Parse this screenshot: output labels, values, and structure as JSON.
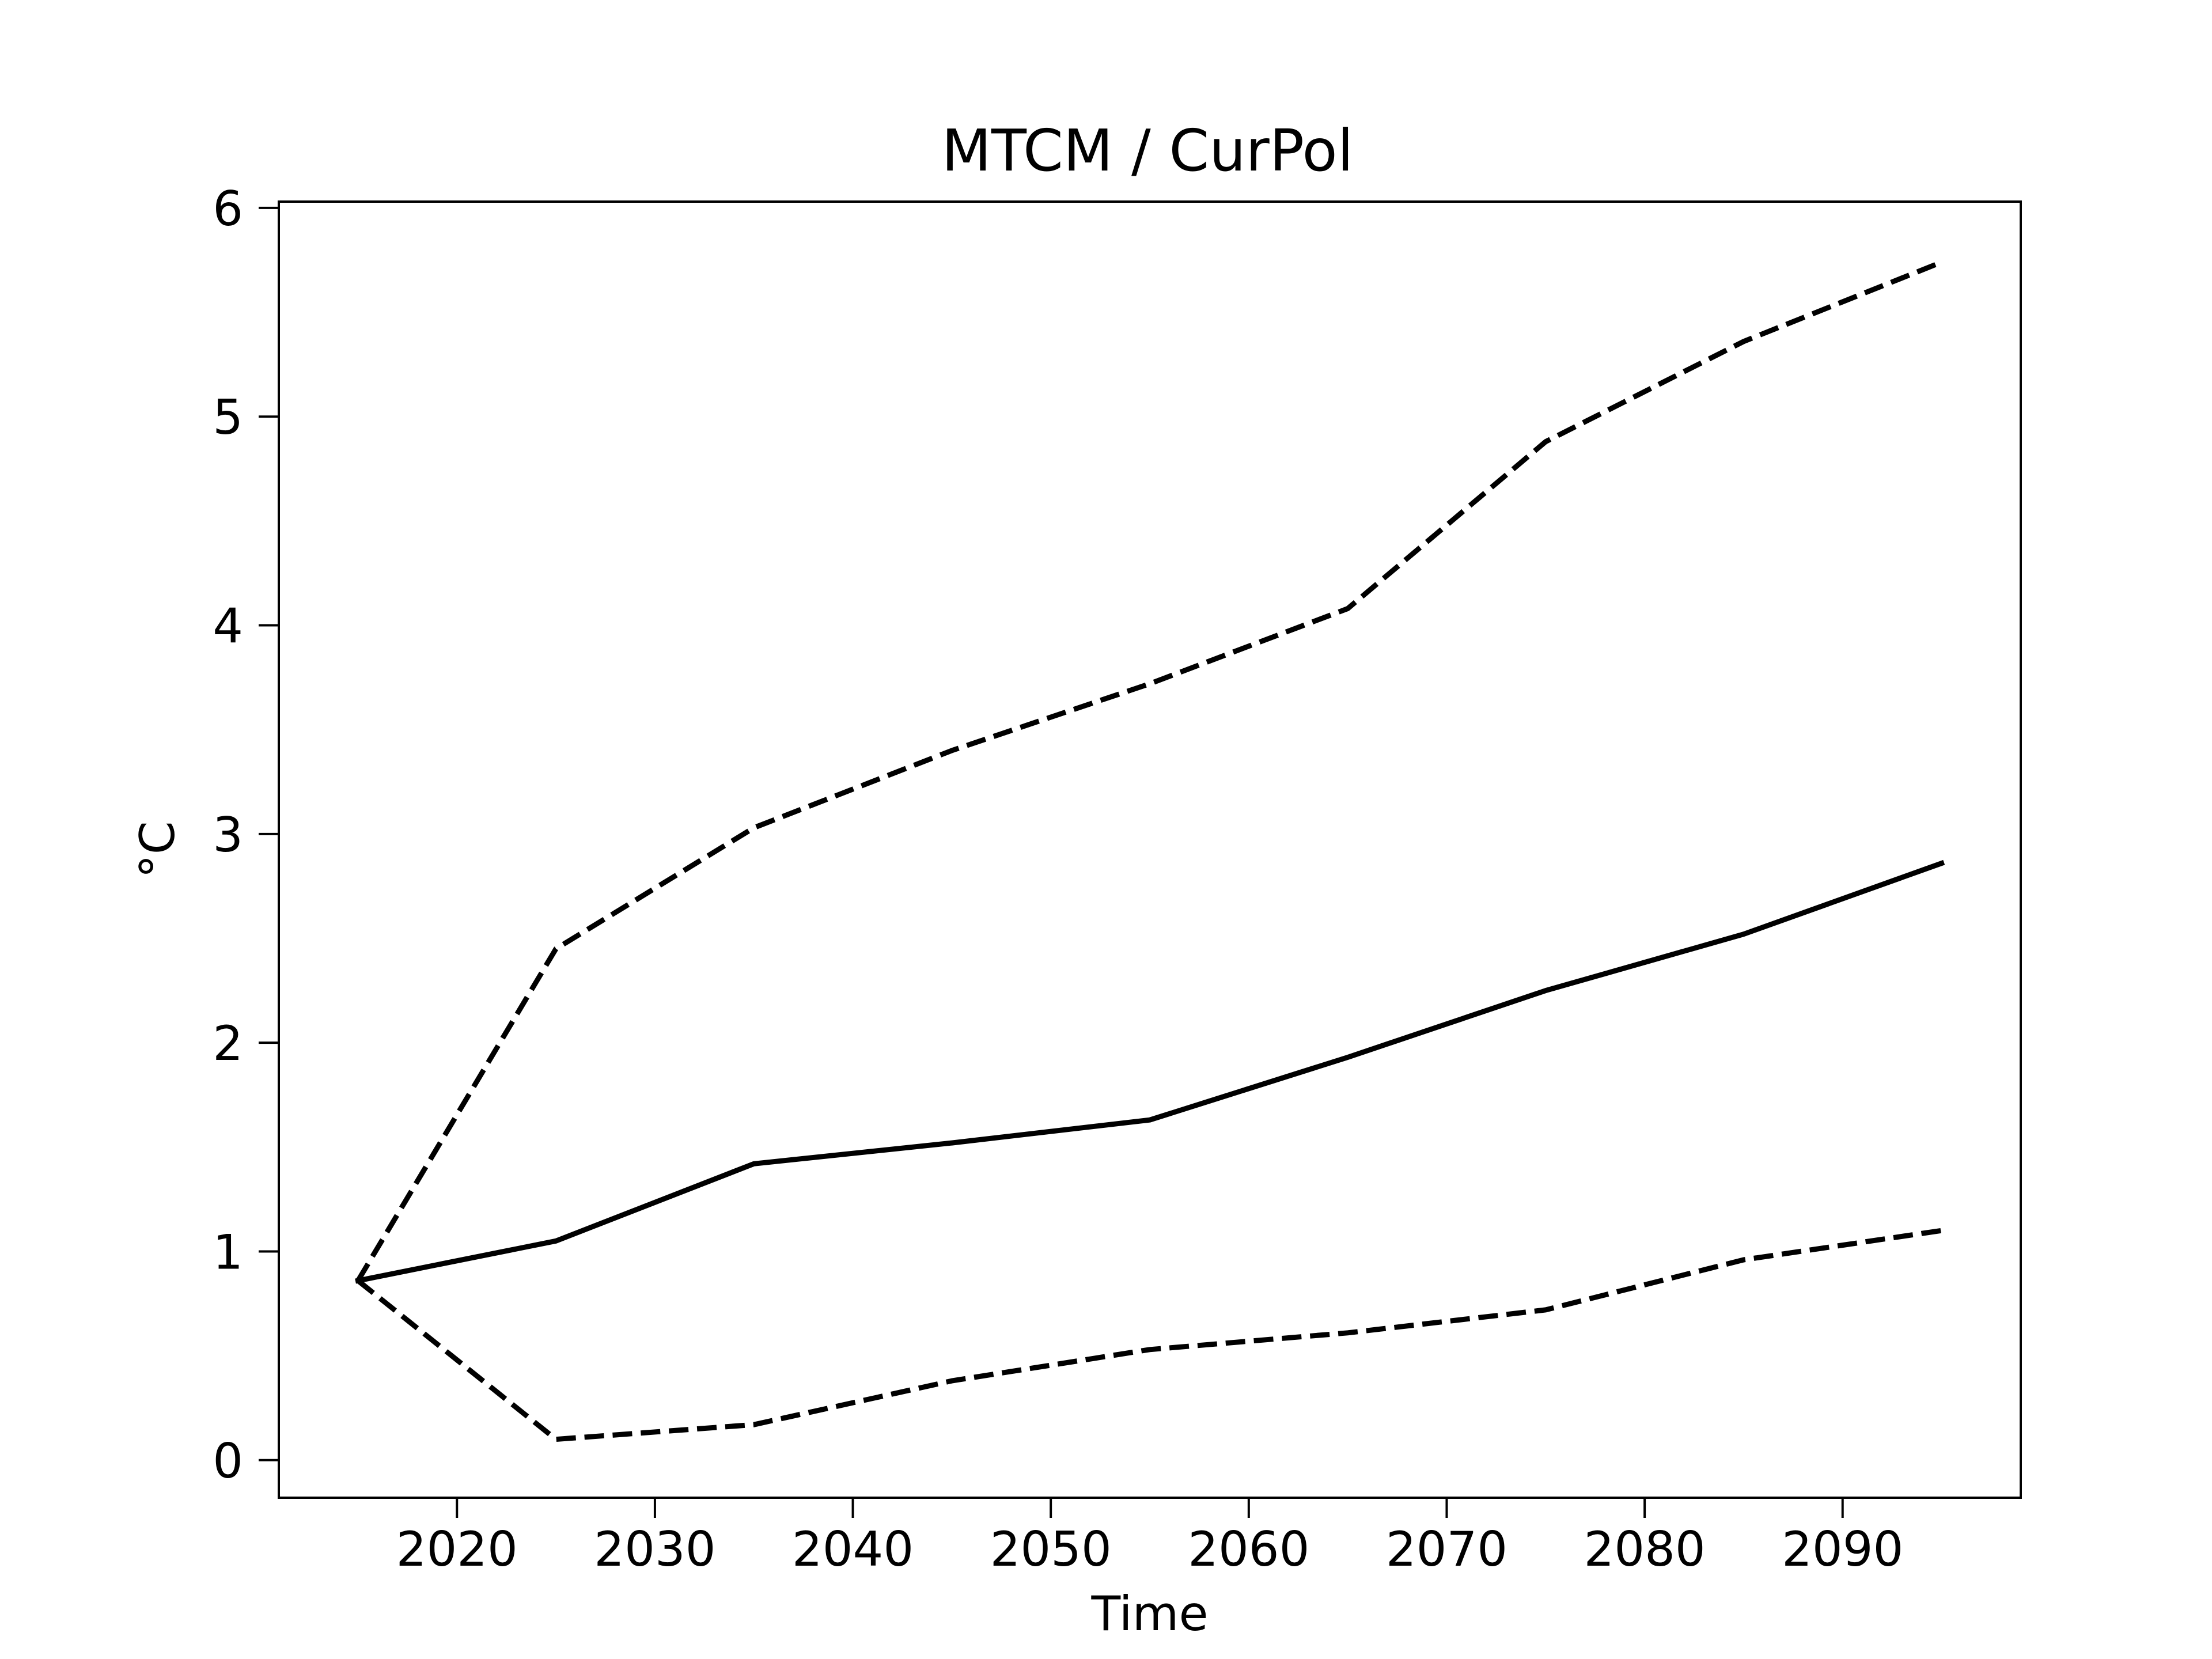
{
  "chart_data": {
    "type": "line",
    "title": "MTCM / CurPol",
    "xlabel": "Time",
    "ylabel": "°C",
    "xlim": [
      2011,
      2099
    ],
    "ylim": [
      -0.18,
      6.03
    ],
    "x_ticks": [
      2020,
      2030,
      2040,
      2050,
      2060,
      2070,
      2080,
      2090
    ],
    "y_ticks": [
      0,
      1,
      2,
      3,
      4,
      5,
      6
    ],
    "grid": false,
    "legend": "none",
    "line_color": "#000000",
    "x": [
      2015,
      2025,
      2035,
      2045,
      2055,
      2065,
      2075,
      2085,
      2095
    ],
    "series": [
      {
        "style": "solid",
        "values": [
          0.86,
          1.05,
          1.42,
          1.52,
          1.63,
          1.93,
          2.25,
          2.52,
          2.86
        ]
      },
      {
        "style": "dashed",
        "values": [
          0.86,
          2.45,
          3.03,
          3.4,
          3.72,
          4.08,
          4.88,
          5.36,
          5.74
        ]
      },
      {
        "style": "dashed",
        "values": [
          0.86,
          0.1,
          0.17,
          0.38,
          0.53,
          0.61,
          0.72,
          0.96,
          1.1
        ]
      }
    ]
  }
}
